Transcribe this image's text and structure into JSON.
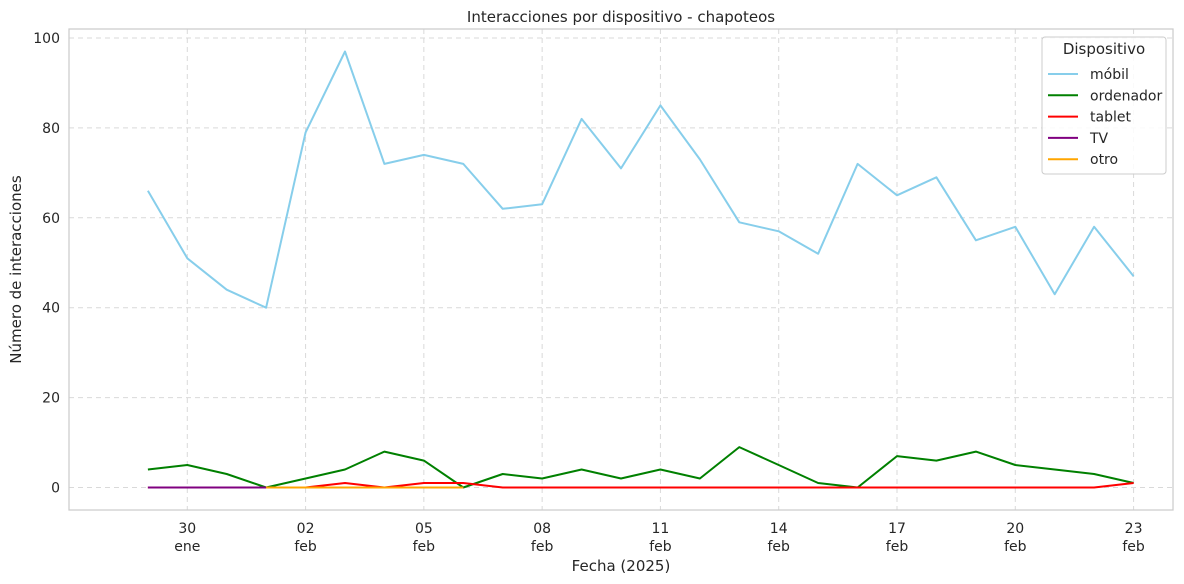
{
  "chart_data": {
    "type": "line",
    "title": "Interacciones por dispositivo - chapoteos",
    "xlabel": "Fecha (2025)",
    "ylabel": "Número de interacciones",
    "x": [
      "2025-01-29",
      "2025-01-30",
      "2025-01-31",
      "2025-02-01",
      "2025-02-02",
      "2025-02-03",
      "2025-02-04",
      "2025-02-05",
      "2025-02-06",
      "2025-02-07",
      "2025-02-08",
      "2025-02-09",
      "2025-02-10",
      "2025-02-11",
      "2025-02-12",
      "2025-02-13",
      "2025-02-14",
      "2025-02-15",
      "2025-02-16",
      "2025-02-17",
      "2025-02-18",
      "2025-02-19",
      "2025-02-20",
      "2025-02-21",
      "2025-02-22",
      "2025-02-23"
    ],
    "xlim": [
      "2025-01-27",
      "2025-02-24"
    ],
    "ylim": [
      -5,
      102
    ],
    "yticks": [
      0,
      20,
      40,
      60,
      80,
      100
    ],
    "xticks": [
      {
        "date": "2025-01-30",
        "day": "30",
        "month": "ene"
      },
      {
        "date": "2025-02-02",
        "day": "02",
        "month": "feb"
      },
      {
        "date": "2025-02-05",
        "day": "05",
        "month": "feb"
      },
      {
        "date": "2025-02-08",
        "day": "08",
        "month": "feb"
      },
      {
        "date": "2025-02-11",
        "day": "11",
        "month": "feb"
      },
      {
        "date": "2025-02-14",
        "day": "14",
        "month": "feb"
      },
      {
        "date": "2025-02-17",
        "day": "17",
        "month": "feb"
      },
      {
        "date": "2025-02-20",
        "day": "20",
        "month": "feb"
      },
      {
        "date": "2025-02-23",
        "day": "23",
        "month": "feb"
      }
    ],
    "grid": true,
    "legend": {
      "title": "Dispositivo",
      "placement": "top-right"
    },
    "series": [
      {
        "name": "móbil",
        "color": "#87CEEB",
        "values": [
          66,
          51,
          44,
          40,
          79,
          97,
          72,
          74,
          72,
          62,
          63,
          82,
          71,
          85,
          73,
          59,
          57,
          52,
          72,
          65,
          69,
          55,
          58,
          43,
          58,
          47
        ]
      },
      {
        "name": "ordenador",
        "color": "#008000",
        "values": [
          4,
          5,
          3,
          0,
          2,
          4,
          8,
          6,
          0,
          3,
          2,
          4,
          2,
          4,
          2,
          9,
          5,
          1,
          0,
          7,
          6,
          8,
          5,
          4,
          3,
          1
        ]
      },
      {
        "name": "tablet",
        "color": "#FF0000",
        "values": [
          0,
          0,
          0,
          0,
          0,
          1,
          0,
          1,
          1,
          0,
          0,
          0,
          0,
          0,
          0,
          0,
          0,
          0,
          0,
          0,
          0,
          0,
          0,
          0,
          0,
          1
        ]
      },
      {
        "name": "TV",
        "color": "#800080",
        "values": [
          0,
          0,
          0,
          0,
          0,
          0,
          0,
          0,
          0,
          null,
          null,
          null,
          null,
          null,
          null,
          null,
          null,
          null,
          null,
          null,
          null,
          null,
          null,
          null,
          null,
          null
        ]
      },
      {
        "name": "otro",
        "color": "#FFA500",
        "values": [
          null,
          null,
          null,
          0,
          0,
          0,
          0,
          0,
          0,
          null,
          null,
          null,
          null,
          null,
          null,
          null,
          null,
          null,
          null,
          null,
          null,
          null,
          null,
          null,
          null,
          null
        ]
      }
    ]
  }
}
